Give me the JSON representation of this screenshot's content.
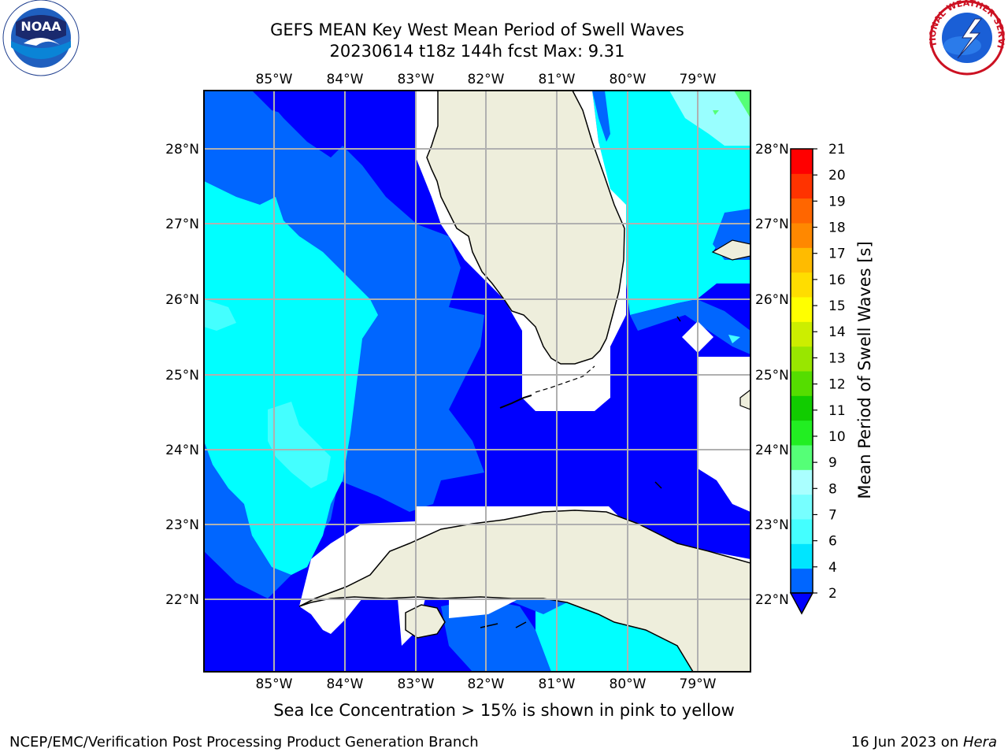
{
  "title": {
    "line1": "GEFS MEAN Key West Mean Period of Swell Waves",
    "line2": "20230614 t18z 144h fcst   Max: 9.31"
  },
  "subtitle": "Sea Ice Concentration > 15% is shown in pink to yellow",
  "footer": {
    "left": "NCEP/EMC/Verification Post Processing Product Generation Branch",
    "right_date": "16 Jun 2023 on ",
    "right_host": "Hera"
  },
  "logos": {
    "noaa": {
      "text": "NOAA",
      "icon": "noaa-logo"
    },
    "nws": {
      "text": "NATIONAL WEATHER SERVICE",
      "icon": "nws-logo"
    }
  },
  "map": {
    "lon_ticks": [
      "85°W",
      "84°W",
      "83°W",
      "82°W",
      "81°W",
      "80°W",
      "79°W"
    ],
    "lat_ticks": [
      "28°N",
      "27°N",
      "26°N",
      "25°N",
      "24°N",
      "23°N",
      "22°N"
    ],
    "colors": {
      "ocean_deep": "#0000ff",
      "ocean_mid": "#0066ff",
      "ocean_cyan": "#00ffff",
      "ocean_light": "#44ffff",
      "ocean_pale": "#99ffff",
      "land": "#eeeedc",
      "grid": "#b0b0b0"
    }
  },
  "colorbar": {
    "label": "Mean Period of Swell Waves [s]",
    "ticks": [
      "2",
      "4",
      "6",
      "7",
      "8",
      "9",
      "10",
      "11",
      "12",
      "13",
      "14",
      "15",
      "16",
      "17",
      "18",
      "19",
      "20",
      "21"
    ],
    "colors": [
      "#0066ff",
      "#00e5ff",
      "#44ffff",
      "#77ffff",
      "#aaffff",
      "#55ff77",
      "#22ee22",
      "#11cc00",
      "#55dd00",
      "#99e600",
      "#ccee00",
      "#ffff00",
      "#ffdd00",
      "#ffbb00",
      "#ff8800",
      "#ff6600",
      "#ff3300",
      "#ff0000"
    ],
    "under_color": "#0000ff"
  }
}
